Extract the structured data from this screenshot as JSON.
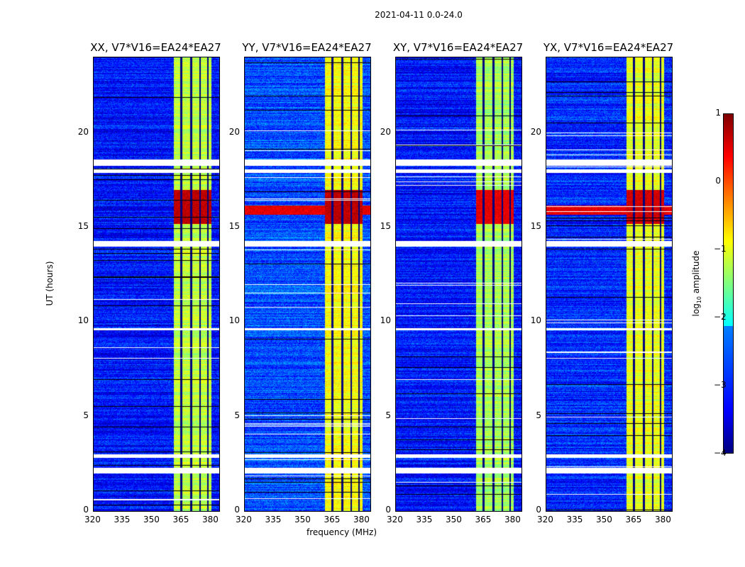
{
  "chart_data": {
    "type": "heatmap",
    "title": "2021-04-11 0.0-24.0",
    "xlabel": "frequency (MHz)",
    "ylabel": "UT (hours)",
    "xlim": [
      320,
      384
    ],
    "ylim": [
      0,
      24
    ],
    "xticks": [
      "320",
      "335",
      "350",
      "365",
      "380"
    ],
    "yticks": [
      "0",
      "5",
      "10",
      "15",
      "20"
    ],
    "colorbar": {
      "label": "log10 amplitude",
      "label_main": "log",
      "label_sub": "10",
      "label_rest": " amplitude",
      "range": [
        -4,
        1
      ],
      "ticks": [
        "1",
        "0",
        "−1",
        "−2",
        "−3",
        "−4"
      ],
      "colormap": "jet"
    },
    "panels": [
      {
        "title": "XX, V7*V16=EA24*EA27",
        "background": -3.3,
        "band_level": -1.2,
        "burst_level": 0.9,
        "broadband_burst": false
      },
      {
        "title": "YY, V7*V16=EA24*EA27",
        "background": -3.0,
        "band_level": -0.9,
        "burst_level": 0.9,
        "broadband_burst": true
      },
      {
        "title": "XY, V7*V16=EA24*EA27",
        "background": -3.3,
        "band_level": -1.3,
        "burst_level": 0.7,
        "broadband_burst": false
      },
      {
        "title": "YX, V7*V16=EA24*EA27",
        "background": -3.2,
        "band_level": -1.0,
        "burst_level": 0.8,
        "broadband_burst": true
      }
    ],
    "rfi_band_mhz": [
      360.5,
      380
    ],
    "burst_hours": [
      15.2,
      17.0
    ],
    "flagged_hours": [
      [
        2.0,
        2.3
      ],
      [
        2.85,
        3.0
      ],
      [
        14.0,
        14.3
      ],
      [
        17.9,
        18.1
      ],
      [
        18.3,
        18.6
      ],
      [
        9.6,
        9.7
      ]
    ]
  }
}
